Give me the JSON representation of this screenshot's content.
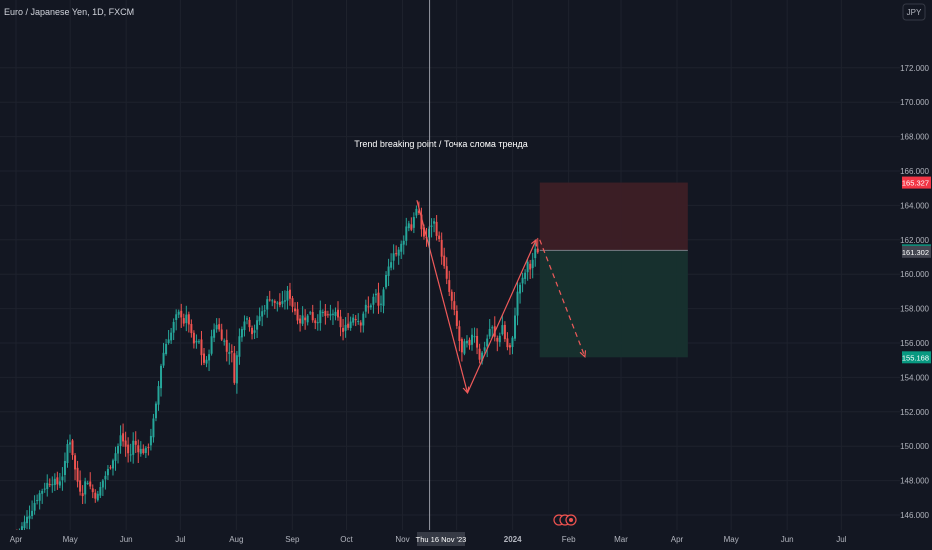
{
  "header": {
    "title": "Euro / Japanese Yen, 1D, FXCM",
    "currency_button": "JPY"
  },
  "colors": {
    "background": "#131722",
    "grid": "#1e222d",
    "up": "#26a69a",
    "down": "#ef5350",
    "stop_zone": "#3d1f26",
    "target_zone": "#17322f",
    "drawing": "#f05a5a",
    "crosshair": "#9598a1"
  },
  "crosshair": {
    "label": "Thu 16 Nov '23"
  },
  "annotation": {
    "text": "Trend breaking point / Точка слома тренда"
  },
  "chart_data": {
    "type": "candlestick",
    "title": "Euro / Japanese Yen, 1D, FXCM",
    "y_unit": "JPY",
    "ylim": [
      145.0,
      174.0
    ],
    "y_ticks": [
      "146.000",
      "148.000",
      "150.000",
      "152.000",
      "154.000",
      "156.000",
      "158.000",
      "160.000",
      "162.000",
      "164.000",
      "166.000",
      "168.000",
      "170.000",
      "172.000"
    ],
    "x_ticks": [
      {
        "label": "Apr",
        "day": 0
      },
      {
        "label": "May",
        "day": 30
      },
      {
        "label": "Jun",
        "day": 61
      },
      {
        "label": "Jul",
        "day": 91
      },
      {
        "label": "Aug",
        "day": 122
      },
      {
        "label": "Sep",
        "day": 153
      },
      {
        "label": "Oct",
        "day": 183
      },
      {
        "label": "Nov",
        "day": 214
      },
      {
        "label": "Dec",
        "day": 244
      },
      {
        "label": "2024",
        "day": 275
      },
      {
        "label": "Feb",
        "day": 306
      },
      {
        "label": "Mar",
        "day": 335
      },
      {
        "label": "Apr",
        "day": 366
      },
      {
        "label": "May",
        "day": 396
      },
      {
        "label": "Jun",
        "day": 427
      },
      {
        "label": "Jul",
        "day": 457
      }
    ],
    "close_path": [
      [
        1,
        145.0
      ],
      [
        4,
        145.4
      ],
      [
        8,
        146.2
      ],
      [
        11,
        146.9
      ],
      [
        14,
        147.4
      ],
      [
        17,
        147.8
      ],
      [
        20,
        148.0
      ],
      [
        23,
        147.8
      ],
      [
        26,
        148.4
      ],
      [
        28,
        149.4
      ],
      [
        29,
        150.8
      ],
      [
        31,
        149.8
      ],
      [
        33,
        148.4
      ],
      [
        35,
        147.6
      ],
      [
        37,
        147.3
      ],
      [
        39,
        148.2
      ],
      [
        42,
        147.4
      ],
      [
        45,
        147.0
      ],
      [
        48,
        148.0
      ],
      [
        51,
        148.6
      ],
      [
        54,
        149.4
      ],
      [
        56,
        149.8
      ],
      [
        58,
        150.6
      ],
      [
        61,
        149.9
      ],
      [
        63,
        149.3
      ],
      [
        65,
        150.3
      ],
      [
        68,
        149.8
      ],
      [
        72,
        149.7
      ],
      [
        74,
        150.3
      ],
      [
        76,
        151.4
      ],
      [
        78,
        152.6
      ],
      [
        80,
        154.6
      ],
      [
        82,
        155.6
      ],
      [
        84,
        156.3
      ],
      [
        86,
        156.6
      ],
      [
        88,
        157.4
      ],
      [
        91,
        157.8
      ],
      [
        93,
        157.2
      ],
      [
        95,
        157.6
      ],
      [
        97,
        156.4
      ],
      [
        99,
        155.8
      ],
      [
        101,
        156.2
      ],
      [
        103,
        155.2
      ],
      [
        105,
        154.6
      ],
      [
        107,
        155.6
      ],
      [
        109,
        156.6
      ],
      [
        111,
        157.2
      ],
      [
        113,
        156.6
      ],
      [
        115,
        156.2
      ],
      [
        117,
        155.4
      ],
      [
        119,
        155.8
      ],
      [
        121,
        153.8
      ],
      [
        123,
        156.0
      ],
      [
        125,
        157.0
      ],
      [
        127,
        157.6
      ],
      [
        129,
        157.2
      ],
      [
        131,
        156.6
      ],
      [
        133,
        157.0
      ],
      [
        135,
        157.6
      ],
      [
        137,
        157.9
      ],
      [
        139,
        158.4
      ],
      [
        141,
        158.8
      ],
      [
        143,
        158.2
      ],
      [
        145,
        158.4
      ],
      [
        147,
        158.1
      ],
      [
        149,
        158.6
      ],
      [
        151,
        159.0
      ],
      [
        153,
        158.2
      ],
      [
        155,
        157.8
      ],
      [
        157,
        157.2
      ],
      [
        159,
        157.6
      ],
      [
        161,
        157.4
      ],
      [
        163,
        157.9
      ],
      [
        165,
        157.2
      ],
      [
        167,
        157.4
      ],
      [
        169,
        157.8
      ],
      [
        171,
        157.6
      ],
      [
        173,
        157.4
      ],
      [
        175,
        157.8
      ],
      [
        177,
        157.6
      ],
      [
        179,
        157.2
      ],
      [
        181,
        156.6
      ],
      [
        183,
        157.0
      ],
      [
        185,
        157.2
      ],
      [
        187,
        157.6
      ],
      [
        189,
        157.4
      ],
      [
        191,
        157.2
      ],
      [
        193,
        158.1
      ],
      [
        195,
        158.0
      ],
      [
        197,
        158.4
      ],
      [
        199,
        158.9
      ],
      [
        201,
        158.0
      ],
      [
        203,
        158.6
      ],
      [
        205,
        159.8
      ],
      [
        207,
        160.6
      ],
      [
        209,
        161.4
      ],
      [
        211,
        161.1
      ],
      [
        213,
        161.6
      ],
      [
        215,
        162.2
      ],
      [
        217,
        163.2
      ],
      [
        219,
        162.6
      ],
      [
        221,
        163.9
      ],
      [
        223,
        163.4
      ],
      [
        225,
        162.4
      ],
      [
        227,
        162.0
      ],
      [
        229,
        162.6
      ],
      [
        231,
        163.2
      ],
      [
        233,
        162.4
      ],
      [
        235,
        161.6
      ],
      [
        237,
        160.4
      ],
      [
        239,
        159.3
      ],
      [
        241,
        158.5
      ],
      [
        243,
        157.6
      ],
      [
        245,
        156.4
      ],
      [
        247,
        155.3
      ],
      [
        249,
        156.2
      ],
      [
        251,
        155.6
      ],
      [
        253,
        156.9
      ],
      [
        255,
        156.0
      ],
      [
        257,
        155.0
      ],
      [
        259,
        155.7
      ],
      [
        261,
        156.3
      ],
      [
        263,
        157.1
      ],
      [
        265,
        156.3
      ],
      [
        267,
        156.0
      ],
      [
        269,
        157.2
      ],
      [
        271,
        156.1
      ],
      [
        273,
        155.5
      ],
      [
        275,
        156.2
      ],
      [
        277,
        158.6
      ],
      [
        279,
        159.4
      ],
      [
        281,
        159.7
      ],
      [
        283,
        160.6
      ],
      [
        285,
        160.3
      ],
      [
        287,
        161.3
      ],
      [
        289,
        161.4
      ]
    ],
    "last_close": 161.302,
    "price_tags": [
      {
        "value": 165.327,
        "text": "165.327",
        "kind": "stop"
      },
      {
        "value": 161.386,
        "text": "161.386",
        "kind": "entry"
      },
      {
        "value": 161.302,
        "text": "161.302",
        "kind": "last"
      },
      {
        "value": 155.168,
        "text": "155.168",
        "kind": "target"
      }
    ],
    "short_position": {
      "entry": 161.386,
      "stop": 165.327,
      "target": 155.168,
      "start_day": 290,
      "end_day": 372
    },
    "drawn_path": [
      [
        222,
        164.3
      ],
      [
        250,
        153.1
      ],
      [
        288,
        162.0
      ]
    ],
    "projection": [
      [
        290,
        162.0
      ],
      [
        315,
        155.2
      ]
    ],
    "crosshair_day": 229
  }
}
